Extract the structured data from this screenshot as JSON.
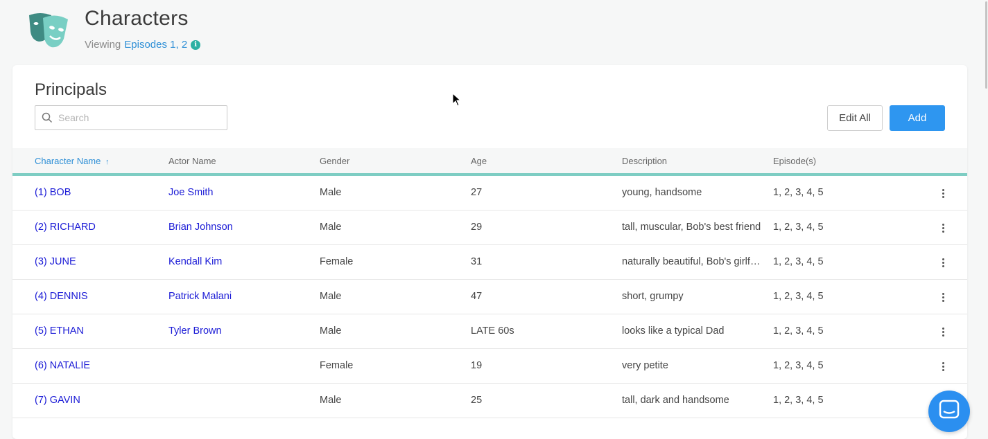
{
  "header": {
    "title": "Characters",
    "viewing_label": "Viewing",
    "episodes_link": "Episodes 1, 2",
    "info_glyph": "i"
  },
  "card": {
    "title": "Principals",
    "search_placeholder": "Search",
    "edit_all_label": "Edit All",
    "add_label": "Add"
  },
  "table": {
    "columns": {
      "character_name": "Character Name",
      "actor_name": "Actor Name",
      "gender": "Gender",
      "age": "Age",
      "description": "Description",
      "episodes": "Episode(s)"
    },
    "sort_indicator": "↑",
    "rows": [
      {
        "character": "(1) BOB",
        "actor": "Joe Smith",
        "gender": "Male",
        "age": "27",
        "description": "young, handsome",
        "episodes": "1, 2, 3, 4, 5"
      },
      {
        "character": "(2) RICHARD",
        "actor": "Brian Johnson",
        "gender": "Male",
        "age": "29",
        "description": "tall, muscular, Bob's best friend",
        "episodes": "1, 2, 3, 4, 5"
      },
      {
        "character": "(3) JUNE",
        "actor": "Kendall Kim",
        "gender": "Female",
        "age": "31",
        "description": "naturally beautiful, Bob's girlfriend",
        "episodes": "1, 2, 3, 4, 5"
      },
      {
        "character": "(4) DENNIS",
        "actor": "Patrick Malani",
        "gender": "Male",
        "age": "47",
        "description": "short, grumpy",
        "episodes": "1, 2, 3, 4, 5"
      },
      {
        "character": "(5) ETHAN",
        "actor": "Tyler Brown",
        "gender": "Male",
        "age": "LATE 60s",
        "description": "looks like a typical Dad",
        "episodes": "1, 2, 3, 4, 5"
      },
      {
        "character": "(6) NATALIE",
        "actor": "",
        "gender": "Female",
        "age": "19",
        "description": "very petite",
        "episodes": "1, 2, 3, 4, 5"
      },
      {
        "character": "(7) GAVIN",
        "actor": "",
        "gender": "Male",
        "age": "25",
        "description": "tall, dark and handsome",
        "episodes": "1, 2, 3, 4, 5"
      }
    ]
  },
  "colors": {
    "accent_teal": "#2db1a3",
    "primary_blue": "#2e96f0",
    "link_blue": "#1a1ad6"
  }
}
